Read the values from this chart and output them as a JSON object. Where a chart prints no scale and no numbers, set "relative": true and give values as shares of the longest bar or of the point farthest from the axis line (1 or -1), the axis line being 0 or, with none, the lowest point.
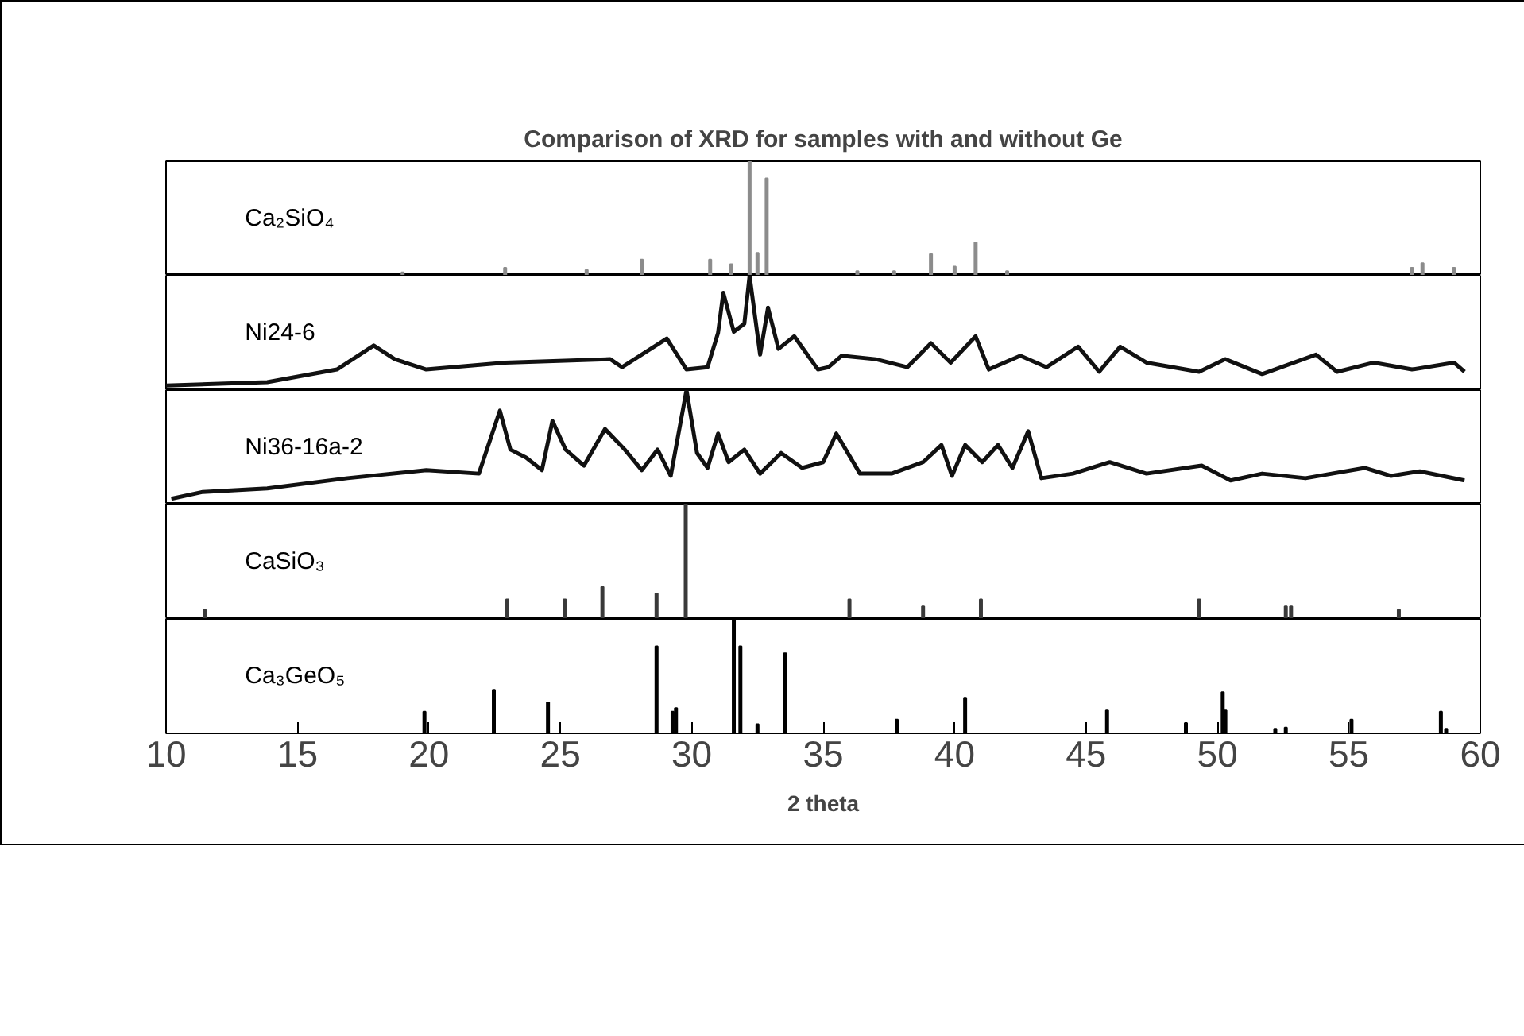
{
  "chart_data": [
    {
      "type": "bar",
      "title": "Comparison of XRD for samples with and without Ge",
      "relative": true,
      "xlim": [
        10,
        60
      ],
      "tick_labels": false,
      "x": [
        19.0,
        22.9,
        26.0,
        28.1,
        30.7,
        31.5,
        32.2,
        32.5,
        32.85,
        36.3,
        37.7,
        39.1,
        40.0,
        40.8,
        42.0,
        57.4,
        57.8,
        59.0
      ],
      "series": [
        {
          "name": "Ca₂SiO₄",
          "color": "#8c8c8c",
          "values": [
            0.03,
            0.07,
            0.05,
            0.14,
            0.14,
            0.1,
            1.0,
            0.2,
            0.85,
            0.04,
            0.04,
            0.19,
            0.08,
            0.29,
            0.04,
            0.07,
            0.11,
            0.07
          ]
        }
      ]
    },
    {
      "type": "line",
      "relative": true,
      "xlim": [
        10,
        60
      ],
      "tick_labels": false,
      "x": [
        10.0,
        13.85,
        16.5,
        17.9,
        18.7,
        19.9,
        22.9,
        26.9,
        27.35,
        29.05,
        29.8,
        30.6,
        31.0,
        31.2,
        31.6,
        32.0,
        32.2,
        32.6,
        32.9,
        33.3,
        33.9,
        34.8,
        35.2,
        35.7,
        37.0,
        38.2,
        39.1,
        39.85,
        40.8,
        41.3,
        42.5,
        43.5,
        44.7,
        45.5,
        46.3,
        47.3,
        49.3,
        50.3,
        51.7,
        53.75,
        54.55,
        55.95,
        57.4,
        59.0,
        59.4
      ],
      "series": [
        {
          "name": "Ni24-6",
          "color": "#111111",
          "values": [
            0.04,
            0.07,
            0.18,
            0.39,
            0.27,
            0.18,
            0.24,
            0.27,
            0.2,
            0.45,
            0.18,
            0.2,
            0.5,
            0.85,
            0.51,
            0.58,
            1.0,
            0.31,
            0.72,
            0.36,
            0.47,
            0.18,
            0.2,
            0.3,
            0.27,
            0.2,
            0.41,
            0.24,
            0.47,
            0.18,
            0.3,
            0.2,
            0.38,
            0.16,
            0.38,
            0.24,
            0.16,
            0.27,
            0.14,
            0.31,
            0.16,
            0.24,
            0.18,
            0.24,
            0.16
          ]
        }
      ]
    },
    {
      "type": "line",
      "relative": true,
      "xlim": [
        10,
        60
      ],
      "tick_labels": false,
      "x": [
        10.2,
        11.4,
        13.85,
        16.9,
        19.9,
        21.9,
        22.7,
        23.1,
        23.7,
        24.3,
        24.7,
        25.2,
        25.9,
        26.7,
        27.45,
        28.1,
        28.7,
        29.2,
        29.8,
        30.2,
        30.6,
        31.0,
        31.4,
        32.0,
        32.6,
        33.4,
        34.2,
        35.0,
        35.5,
        36.4,
        37.6,
        38.8,
        39.5,
        39.9,
        40.4,
        41.05,
        41.65,
        42.2,
        42.8,
        43.3,
        44.5,
        45.9,
        47.3,
        49.4,
        50.5,
        51.7,
        53.35,
        55.6,
        56.6,
        57.7,
        59.4
      ],
      "series": [
        {
          "name": "Ni36-16a-2",
          "color": "#111111",
          "values": [
            0.05,
            0.11,
            0.14,
            0.23,
            0.3,
            0.27,
            0.82,
            0.48,
            0.41,
            0.3,
            0.73,
            0.48,
            0.34,
            0.66,
            0.48,
            0.3,
            0.48,
            0.25,
            1.0,
            0.45,
            0.32,
            0.62,
            0.37,
            0.48,
            0.27,
            0.45,
            0.32,
            0.37,
            0.62,
            0.27,
            0.27,
            0.37,
            0.52,
            0.25,
            0.52,
            0.37,
            0.52,
            0.32,
            0.64,
            0.23,
            0.27,
            0.37,
            0.27,
            0.34,
            0.21,
            0.27,
            0.23,
            0.32,
            0.25,
            0.29,
            0.21
          ]
        }
      ]
    },
    {
      "type": "bar",
      "relative": true,
      "xlim": [
        10,
        60
      ],
      "tick_labels": false,
      "x": [
        11.47,
        22.98,
        25.17,
        26.6,
        28.66,
        29.77,
        36.0,
        38.8,
        41.0,
        49.3,
        52.6,
        52.8,
        56.9
      ],
      "series": [
        {
          "name": "CaSiO₃",
          "color": "#3a3a3a",
          "values": [
            0.08,
            0.17,
            0.17,
            0.28,
            0.22,
            1.0,
            0.17,
            0.11,
            0.17,
            0.17,
            0.11,
            0.11,
            0.08
          ]
        }
      ]
    },
    {
      "type": "bar",
      "relative": true,
      "xlim": [
        10,
        60
      ],
      "xticks": [
        10,
        15,
        20,
        25,
        30,
        35,
        40,
        45,
        50,
        55,
        60
      ],
      "xlabel": "2 theta",
      "tick_labels": "x",
      "x": [
        19.83,
        22.47,
        24.53,
        28.66,
        29.27,
        29.4,
        31.6,
        31.85,
        32.5,
        33.55,
        37.8,
        40.4,
        45.8,
        48.8,
        50.2,
        50.3,
        52.2,
        52.6,
        55.1,
        58.5,
        58.7
      ],
      "series": [
        {
          "name": "Ca₃GeO₅",
          "color": "#000000",
          "values": [
            0.19,
            0.38,
            0.27,
            0.76,
            0.19,
            0.22,
            1.0,
            0.76,
            0.08,
            0.7,
            0.12,
            0.31,
            0.2,
            0.09,
            0.36,
            0.2,
            0.04,
            0.05,
            0.12,
            0.19,
            0.04
          ]
        }
      ]
    }
  ]
}
